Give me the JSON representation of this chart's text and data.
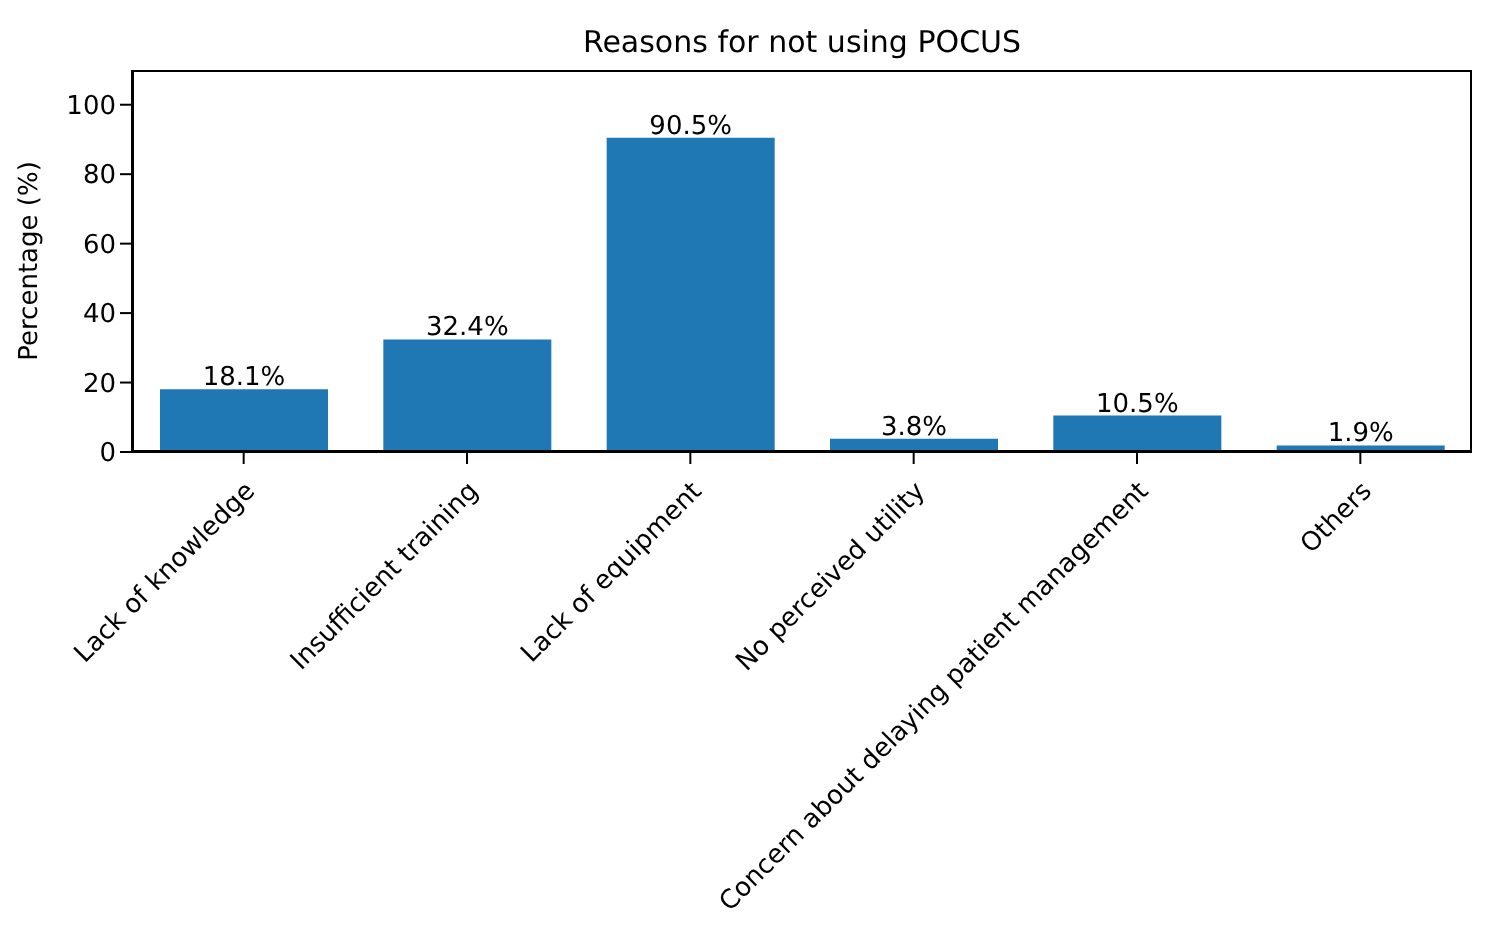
{
  "chart_data": {
    "type": "bar",
    "title": "Reasons for not using POCUS",
    "ylabel": "Percentage (%)",
    "categories": [
      "Lack of knowledge",
      "Insufficient training",
      "Lack of equipment",
      "No perceived utility",
      "Concern about delaying patient management",
      "Others"
    ],
    "values": [
      18.1,
      32.4,
      90.5,
      3.8,
      10.5,
      1.9
    ],
    "value_labels": [
      "18.1%",
      "32.4%",
      "90.5%",
      "3.8%",
      "10.5%",
      "1.9%"
    ],
    "color": "#1f77b4",
    "ylim": [
      0,
      110
    ],
    "yticks": [
      0,
      20,
      40,
      60,
      80,
      100
    ],
    "grid": false
  }
}
